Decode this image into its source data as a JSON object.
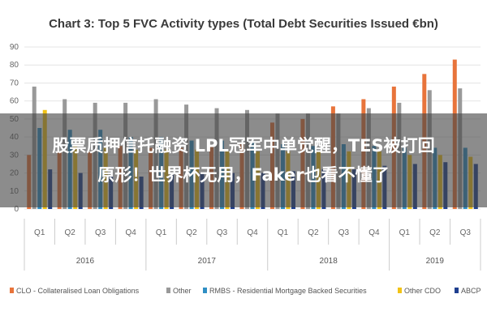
{
  "chart_data": {
    "type": "bar",
    "title": "Chart 3: Top 5 FVC Activity types (Total Debt Securities Issued €bn)",
    "ylim": [
      0,
      90
    ],
    "yticks": [
      0,
      10,
      20,
      30,
      40,
      50,
      60,
      70,
      80,
      90
    ],
    "categories": [
      "Q1",
      "Q2",
      "Q3",
      "Q4",
      "Q1",
      "Q2",
      "Q3",
      "Q4",
      "Q1",
      "Q2",
      "Q3",
      "Q4",
      "Q1",
      "Q2",
      "Q3"
    ],
    "years": [
      {
        "label": "2016",
        "span": 4
      },
      {
        "label": "2017",
        "span": 4
      },
      {
        "label": "2018",
        "span": 4
      },
      {
        "label": "2019",
        "span": 3
      }
    ],
    "grid": true,
    "legend_position": "bottom",
    "series": [
      {
        "name": "CLO - Collateralised Loan Obligations",
        "color": "#e8743b",
        "values": [
          30,
          32,
          32,
          35,
          34,
          34,
          35,
          36,
          48,
          50,
          57,
          61,
          68,
          75,
          83
        ]
      },
      {
        "name": "Other",
        "color": "#999999",
        "values": [
          68,
          61,
          59,
          59,
          61,
          58,
          56,
          55,
          53,
          53,
          53,
          56,
          59,
          66,
          67
        ]
      },
      {
        "name": "RMBS - Residential Mortgage Backed Securities",
        "color": "#2f8fc4",
        "values": [
          45,
          44,
          44,
          40,
          40,
          38,
          38,
          37,
          36,
          35,
          36,
          35,
          34,
          34,
          34
        ]
      },
      {
        "name": "Other CDO",
        "color": "#f2c316",
        "values": [
          55,
          35,
          34,
          33,
          33,
          33,
          32,
          32,
          32,
          32,
          32,
          32,
          30,
          30,
          29
        ]
      },
      {
        "name": "ABCP",
        "color": "#1f3f8f",
        "values": [
          22,
          20,
          18,
          18,
          19,
          20,
          20,
          20,
          21,
          22,
          22,
          24,
          25,
          26,
          25
        ]
      }
    ]
  },
  "overlay": {
    "line1": "股票质押信托融资 LPL冠军中单觉醒，TES被打回",
    "line2": "原形！世界杯无用，Faker也看不懂了"
  }
}
